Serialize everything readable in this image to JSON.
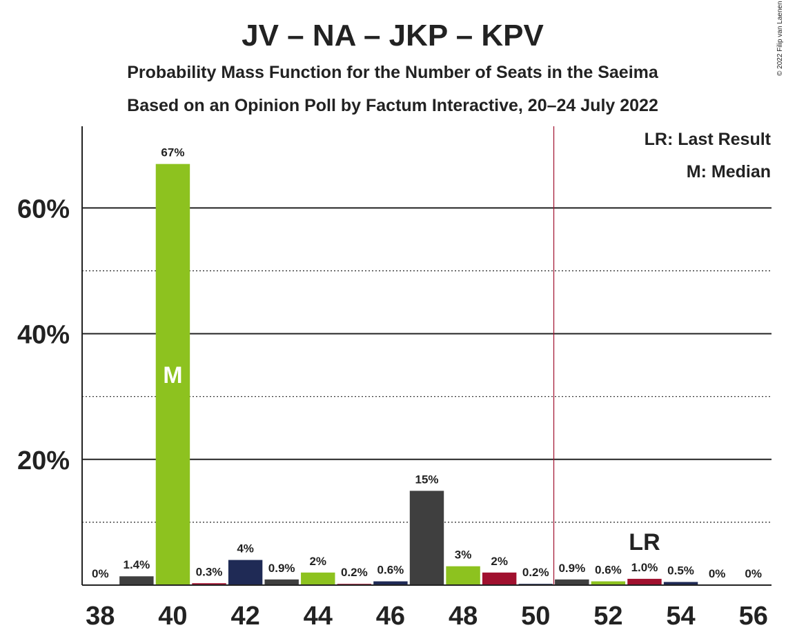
{
  "chart_data": {
    "type": "bar",
    "title": "JV – NA – JKP – KPV",
    "subtitle": "Probability Mass Function for the Number of Seats in the Saeima",
    "subtitle2": "Based on an Opinion Poll by Factum Interactive, 20–24 July 2022",
    "copyright": "© 2022 Filip van Laenen",
    "x": [
      38,
      39,
      40,
      41,
      42,
      43,
      44,
      45,
      46,
      47,
      48,
      49,
      50,
      51,
      52,
      53,
      54,
      55,
      56
    ],
    "values": [
      0,
      1.4,
      67,
      0.3,
      4,
      0.9,
      2,
      0.2,
      0.6,
      15,
      3,
      2,
      0.2,
      0.9,
      0.6,
      1.0,
      0.5,
      0,
      0
    ],
    "value_labels": [
      "0%",
      "1.4%",
      "67%",
      "0.3%",
      "4%",
      "0.9%",
      "2%",
      "0.2%",
      "0.6%",
      "15%",
      "3%",
      "2%",
      "0.2%",
      "0.9%",
      "0.6%",
      "1.0%",
      "0.5%",
      "0%",
      "0%"
    ],
    "colors": [
      "#1f2a55",
      "#3f3f3f",
      "#8dc21f",
      "#a0102e",
      "#1f2a55",
      "#3f3f3f",
      "#8dc21f",
      "#a0102e",
      "#1f2a55",
      "#3f3f3f",
      "#8dc21f",
      "#a0102e",
      "#1f2a55",
      "#3f3f3f",
      "#8dc21f",
      "#a0102e",
      "#1f2a55",
      "#3f3f3f",
      "#8dc21f"
    ],
    "xlim": [
      37.5,
      56.5
    ],
    "xticks": [
      38,
      40,
      42,
      44,
      46,
      48,
      50,
      52,
      54,
      56
    ],
    "ylim": [
      0,
      73
    ],
    "yticks": [
      {
        "value": 20,
        "label": "20%"
      },
      {
        "value": 40,
        "label": "40%"
      },
      {
        "value": 60,
        "label": "60%"
      }
    ],
    "minor_gridlines": [
      10,
      30,
      50
    ],
    "majority_line": 50.5,
    "median": {
      "x": 40,
      "label": "M"
    },
    "last_result": {
      "x": 53,
      "label": "LR"
    },
    "legend": [
      "LR: Last Result",
      "M: Median"
    ]
  }
}
